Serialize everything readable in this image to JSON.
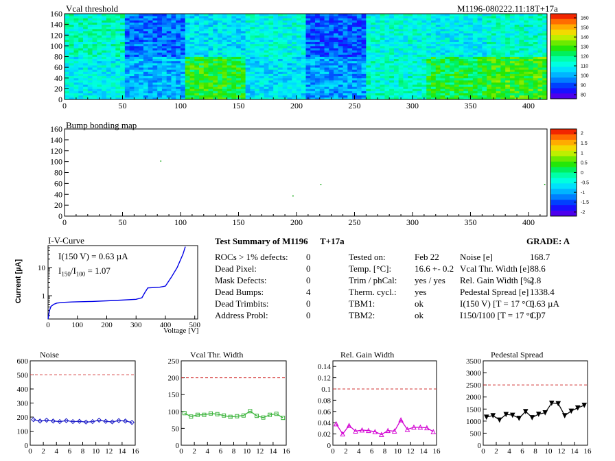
{
  "app_title": "M1196-080222.11:18T+17a",
  "colors": {
    "noise": "#1e1ec8",
    "vcal": "#3cb43c",
    "gain": "#d200d2",
    "pedestal": "#000000",
    "iv_curve": "#0000e6",
    "threshold_line": "#d23232"
  },
  "top_map": {
    "title": "Vcal threshold",
    "module_label": "M1196-080222.11:18T+17a",
    "x_ticks": [
      "0",
      "50",
      "100",
      "150",
      "200",
      "250",
      "300",
      "350",
      "400"
    ],
    "y_ticks": [
      "0",
      "20",
      "40",
      "60",
      "80",
      "100",
      "120",
      "140",
      "160"
    ],
    "colorbar_ticks": [
      "160",
      "150",
      "140",
      "130",
      "120",
      "110",
      "100",
      "90",
      "80"
    ]
  },
  "bump_map": {
    "title": "Bump bonding map",
    "x_ticks": [
      "0",
      "50",
      "100",
      "150",
      "200",
      "250",
      "300",
      "350",
      "400"
    ],
    "y_ticks": [
      "0",
      "20",
      "40",
      "60",
      "80",
      "100",
      "120",
      "140",
      "160"
    ],
    "colorbar_ticks": [
      "2",
      "1.5",
      "1",
      "0.5",
      "0",
      "-0.5",
      "-1",
      "-1.5",
      "-2"
    ]
  },
  "iv": {
    "title": "I-V-Curve",
    "i150_text": "I(150 V) = 0.63 µA",
    "ratio_label": "I",
    "ratio_sub1": "150",
    "ratio_sep": "/I",
    "ratio_sub2": "100",
    "ratio_value": " =  1.07",
    "ylabel": "Current [µA]",
    "xlabel": "Voltage [V]",
    "x_ticks": [
      "0",
      "100",
      "200",
      "300",
      "400",
      "500"
    ],
    "y_ticks": [
      "1",
      "10"
    ]
  },
  "summary": {
    "title": "Test Summary of M1196",
    "subtitle": "T+17a",
    "grade": "GRADE:  A",
    "left_rows": [
      {
        "label": "ROCs > 1% defects:",
        "value": "0"
      },
      {
        "label": "Dead Pixel:",
        "value": "0"
      },
      {
        "label": "Mask Defects:",
        "value": "0"
      },
      {
        "label": "Dead Bumps:",
        "value": "4"
      },
      {
        "label": "Dead Trimbits:",
        "value": "0"
      },
      {
        "label": "Address Probl:",
        "value": "0"
      }
    ],
    "mid_rows": [
      {
        "label": "Tested on:",
        "value": "Feb 22"
      },
      {
        "label": "Temp. [°C]:",
        "value": "16.6 +- 0.2"
      },
      {
        "label": "Trim / phCal:",
        "value": "yes / yes"
      },
      {
        "label": "Therm. cycl.:",
        "value": "yes"
      },
      {
        "label": "TBM1:",
        "value": "ok"
      },
      {
        "label": "TBM2:",
        "value": "ok"
      }
    ],
    "right_rows": [
      {
        "label": "Noise [e]",
        "value": "168.7"
      },
      {
        "label": "Vcal Thr. Width [e]",
        "value": "88.6"
      },
      {
        "label": "Rel. Gain Width [%]",
        "value": "2.8"
      },
      {
        "label": "Pedestal Spread [e]",
        "value": "1338.4"
      },
      {
        "label": "I(150 V) [T = 17 °C]",
        "value": "0.63 µA"
      },
      {
        "label": "I150/I100  [T = 17 °C]",
        "value": "1.07"
      }
    ]
  },
  "chart_data": [
    {
      "type": "heatmap",
      "title": "Vcal threshold",
      "xlim": [
        0,
        416
      ],
      "ylim": [
        0,
        160
      ],
      "zlim": [
        80,
        160
      ],
      "roc_grid": "8 columns x 2 rows",
      "roc_mean_threshold": {
        "top_row": [
          115,
          96,
          108,
          112,
          94,
          112,
          110,
          114
        ],
        "bottom_row": [
          110,
          103,
          126,
          108,
          101,
          114,
          124,
          128
        ]
      }
    },
    {
      "type": "heatmap",
      "title": "Bump bonding map",
      "xlim": [
        0,
        416
      ],
      "ylim": [
        0,
        160
      ],
      "zlim": [
        -2,
        2
      ],
      "dead_bumps": [
        {
          "x": 83,
          "y": 101
        },
        {
          "x": 197,
          "y": 37
        },
        {
          "x": 221,
          "y": 58
        },
        {
          "x": 414,
          "y": 58
        }
      ]
    },
    {
      "type": "line",
      "title": "I-V-Curve",
      "xlabel": "Voltage [V]",
      "ylabel": "Current [µA]",
      "xlim": [
        0,
        510
      ],
      "ylim": [
        0.15,
        60
      ],
      "yscale": "log",
      "x": [
        0,
        5,
        10,
        20,
        30,
        50,
        80,
        100,
        150,
        200,
        250,
        300,
        320,
        330,
        340,
        380,
        400,
        420,
        440,
        460,
        468
      ],
      "y": [
        0.15,
        0.3,
        0.42,
        0.5,
        0.55,
        0.58,
        0.6,
        0.61,
        0.63,
        0.66,
        0.7,
        0.75,
        0.85,
        1.3,
        1.9,
        2.0,
        2.2,
        4.5,
        10,
        30,
        55
      ]
    },
    {
      "type": "line",
      "title": "Noise",
      "xlim": [
        0,
        16
      ],
      "ylim": [
        0,
        600
      ],
      "threshold": 500,
      "x": [
        0.5,
        1.5,
        2.5,
        3.5,
        4.5,
        5.5,
        6.5,
        7.5,
        8.5,
        9.5,
        10.5,
        11.5,
        12.5,
        13.5,
        14.5,
        15.5
      ],
      "values": [
        182,
        172,
        178,
        172,
        168,
        175,
        168,
        170,
        165,
        168,
        178,
        170,
        166,
        175,
        172,
        162
      ]
    },
    {
      "type": "line",
      "title": "Vcal Thr. Width",
      "xlim": [
        0,
        16
      ],
      "ylim": [
        0,
        250
      ],
      "threshold": 200,
      "x": [
        0.5,
        1.5,
        2.5,
        3.5,
        4.5,
        5.5,
        6.5,
        7.5,
        8.5,
        9.5,
        10.5,
        11.5,
        12.5,
        13.5,
        14.5,
        15.5
      ],
      "values": [
        95,
        85,
        90,
        90,
        94,
        92,
        88,
        84,
        86,
        88,
        101,
        87,
        82,
        90,
        93,
        81
      ]
    },
    {
      "type": "line",
      "title": "Rel. Gain Width",
      "xlim": [
        0,
        16
      ],
      "ylim": [
        0,
        0.15
      ],
      "threshold": 0.1,
      "x": [
        0.5,
        1.5,
        2.5,
        3.5,
        4.5,
        5.5,
        6.5,
        7.5,
        8.5,
        9.5,
        10.5,
        11.5,
        12.5,
        13.5,
        14.5,
        15.5
      ],
      "values": [
        0.038,
        0.02,
        0.035,
        0.025,
        0.027,
        0.026,
        0.024,
        0.019,
        0.026,
        0.025,
        0.045,
        0.028,
        0.032,
        0.032,
        0.031,
        0.024
      ]
    },
    {
      "type": "line",
      "title": "Pedestal Spread",
      "xlim": [
        0,
        16
      ],
      "ylim": [
        0,
        3500
      ],
      "threshold": 2500,
      "x": [
        0.5,
        1.5,
        2.5,
        3.5,
        4.5,
        5.5,
        6.5,
        7.5,
        8.5,
        9.5,
        10.5,
        11.5,
        12.5,
        13.5,
        14.5,
        15.5
      ],
      "values": [
        1170,
        1230,
        1050,
        1280,
        1250,
        1120,
        1400,
        1150,
        1290,
        1350,
        1750,
        1730,
        1230,
        1420,
        1550,
        1660
      ]
    }
  ]
}
